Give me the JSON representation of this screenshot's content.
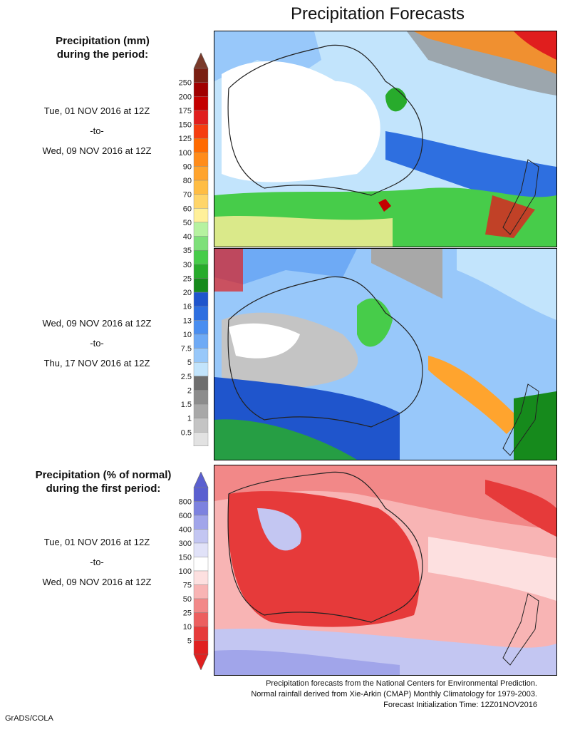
{
  "title": "Precipitation Forecasts",
  "amount_heading": [
    "Precipitation (mm)",
    "during the period:"
  ],
  "percent_heading": [
    "Precipitation (% of normal)",
    "during the first period:"
  ],
  "period1": {
    "start": "Tue, 01 NOV 2016 at 12Z",
    "sep": "-to-",
    "end": "Wed, 09 NOV 2016 at 12Z"
  },
  "period2": {
    "start": "Wed, 09 NOV 2016 at 12Z",
    "sep": "-to-",
    "end": "Thu, 17 NOV 2016 at 12Z"
  },
  "period3": {
    "start": "Tue, 01 NOV 2016 at 12Z",
    "sep": "-to-",
    "end": "Wed, 09 NOV 2016 at 12Z"
  },
  "amount_legend": {
    "labels": [
      "250",
      "200",
      "175",
      "150",
      "125",
      "100",
      "90",
      "80",
      "70",
      "60",
      "50",
      "40",
      "35",
      "30",
      "25",
      "20",
      "16",
      "13",
      "10",
      "7.5",
      "5",
      "2.5",
      "2",
      "1.5",
      "1",
      "0.5"
    ],
    "colors": [
      "#7a1f12",
      "#a00000",
      "#c40000",
      "#e01e1e",
      "#f53d10",
      "#ff6a00",
      "#ff8c1a",
      "#ffa42e",
      "#ffbd44",
      "#ffd56a",
      "#fff09a",
      "#b6f2a0",
      "#7ee07a",
      "#47cc4a",
      "#28ab2c",
      "#168a1c",
      "#1f55cc",
      "#2e6fe0",
      "#4a8ef0",
      "#6eaaf5",
      "#98c8fa",
      "#c2e4fc",
      "#6e6e6e",
      "#8c8c8c",
      "#a8a8a8",
      "#c4c4c4",
      "#e2e2e2"
    ],
    "top_color": "#7a3a2a"
  },
  "percent_legend": {
    "labels": [
      "800",
      "600",
      "400",
      "300",
      "150",
      "100",
      "75",
      "50",
      "25",
      "10",
      "5"
    ],
    "colors": [
      "#5a5fd0",
      "#7d82df",
      "#a1a5ea",
      "#c3c6f2",
      "#e1e2f8",
      "#ffffff",
      "#fde0e0",
      "#f8b4b4",
      "#f28888",
      "#ec5f5f",
      "#e63a3a",
      "#e02020"
    ],
    "top_color": "#5a5fd0",
    "bottom_color": "#e02020"
  },
  "footer": [
    "Precipitation forecasts from the National Centers for Environmental Prediction.",
    "Normal rainfall derived from Xie-Arkin (CMAP) Monthly Climatology for 1979-2003.",
    "Forecast Initialization Time: 12Z01NOV2016"
  ],
  "credit": "GrADS/COLA"
}
